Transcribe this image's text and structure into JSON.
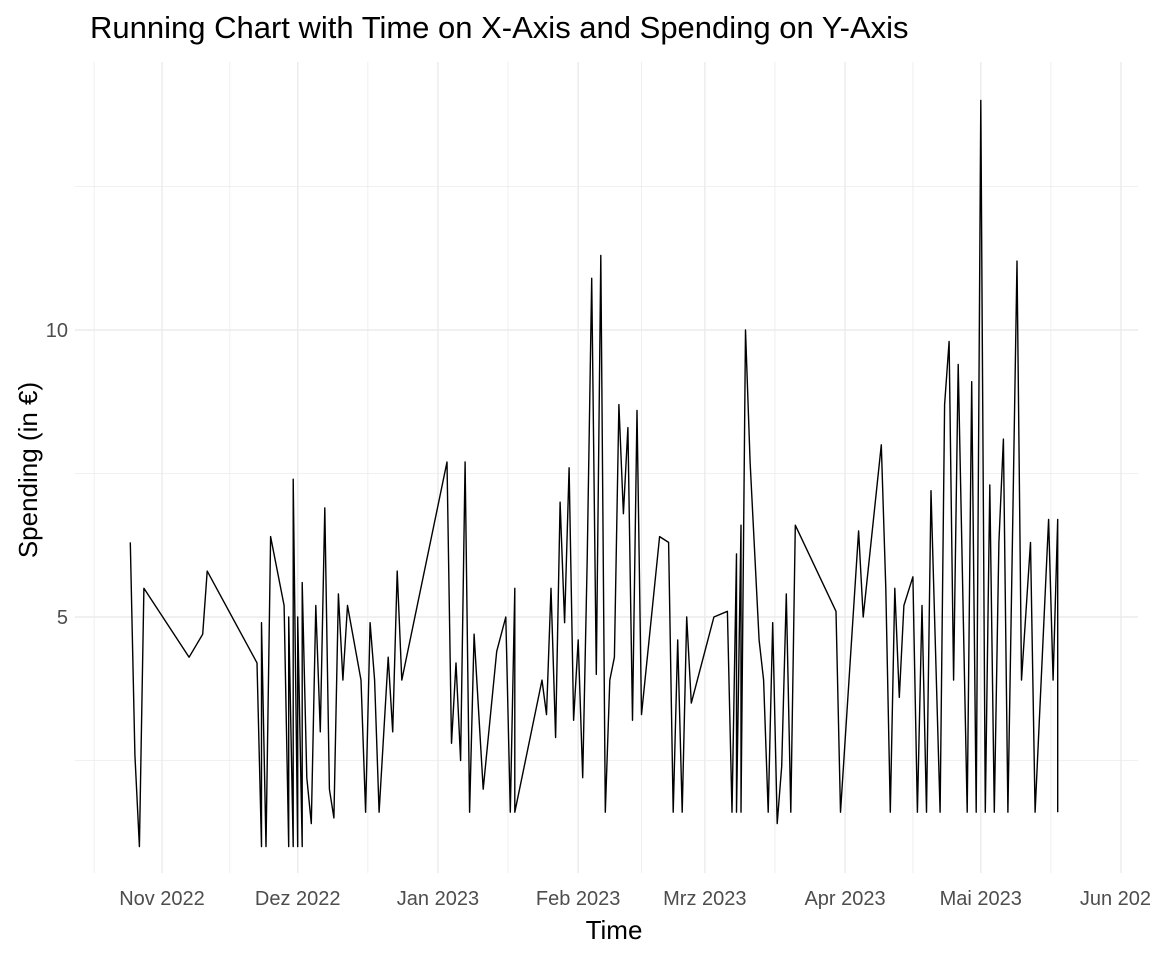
{
  "chart_data": {
    "type": "line",
    "title": "Running Chart with Time on X-Axis and Spending on Y-Axis",
    "xlabel": "Time",
    "ylabel": "Spending (in €)",
    "x_ticks": [
      {
        "date": "2022-11-01",
        "label": "Nov 2022"
      },
      {
        "date": "2022-12-01",
        "label": "Dez 2022"
      },
      {
        "date": "2023-01-01",
        "label": "Jan 2023"
      },
      {
        "date": "2023-02-01",
        "label": "Feb 2023"
      },
      {
        "date": "2023-03-01",
        "label": "Mrz 2023"
      },
      {
        "date": "2023-04-01",
        "label": "Apr 2023"
      },
      {
        "date": "2023-05-01",
        "label": "Mai 2023"
      },
      {
        "date": "2023-06-01",
        "label": "Jun 2023"
      }
    ],
    "y_ticks": [
      5,
      10
    ],
    "xlim": [
      "2022-10-16",
      "2023-06-01"
    ],
    "ylim": [
      0.4,
      14.5
    ],
    "grid": true,
    "color": "#000000",
    "series": [
      {
        "points": [
          [
            "2022-10-25",
            6.3
          ],
          [
            "2022-10-26",
            2.6
          ],
          [
            "2022-10-27",
            1.0
          ],
          [
            "2022-10-28",
            5.5
          ],
          [
            "2022-11-07",
            4.3
          ],
          [
            "2022-11-10",
            4.7
          ],
          [
            "2022-11-11",
            5.8
          ],
          [
            "2022-11-22",
            4.2
          ],
          [
            "2022-11-23",
            1.0
          ],
          [
            "2022-11-23",
            4.9
          ],
          [
            "2022-11-24",
            1.0
          ],
          [
            "2022-11-25",
            6.4
          ],
          [
            "2022-11-28",
            5.2
          ],
          [
            "2022-11-29",
            1.0
          ],
          [
            "2022-11-29",
            5.0
          ],
          [
            "2022-11-30",
            1.0
          ],
          [
            "2022-11-30",
            7.4
          ],
          [
            "2022-12-01",
            1.0
          ],
          [
            "2022-12-01",
            5.0
          ],
          [
            "2022-12-02",
            1.0
          ],
          [
            "2022-12-02",
            5.6
          ],
          [
            "2022-12-03",
            2.2
          ],
          [
            "2022-12-04",
            1.4
          ],
          [
            "2022-12-05",
            5.2
          ],
          [
            "2022-12-06",
            3.0
          ],
          [
            "2022-12-07",
            6.9
          ],
          [
            "2022-12-08",
            2.0
          ],
          [
            "2022-12-09",
            1.5
          ],
          [
            "2022-12-10",
            5.4
          ],
          [
            "2022-12-11",
            3.9
          ],
          [
            "2022-12-12",
            5.2
          ],
          [
            "2022-12-15",
            3.9
          ],
          [
            "2022-12-16",
            1.6
          ],
          [
            "2022-12-17",
            4.9
          ],
          [
            "2022-12-18",
            3.9
          ],
          [
            "2022-12-19",
            1.6
          ],
          [
            "2022-12-21",
            4.3
          ],
          [
            "2022-12-22",
            3.0
          ],
          [
            "2022-12-23",
            5.8
          ],
          [
            "2022-12-24",
            3.9
          ],
          [
            "2023-01-03",
            7.7
          ],
          [
            "2023-01-04",
            2.8
          ],
          [
            "2023-01-05",
            4.2
          ],
          [
            "2023-01-06",
            2.5
          ],
          [
            "2023-01-07",
            7.7
          ],
          [
            "2023-01-08",
            1.6
          ],
          [
            "2023-01-09",
            4.7
          ],
          [
            "2023-01-11",
            2.0
          ],
          [
            "2023-01-14",
            4.4
          ],
          [
            "2023-01-16",
            5.0
          ],
          [
            "2023-01-17",
            1.6
          ],
          [
            "2023-01-18",
            5.5
          ],
          [
            "2023-01-18",
            1.6
          ],
          [
            "2023-01-24",
            3.9
          ],
          [
            "2023-01-25",
            3.3
          ],
          [
            "2023-01-26",
            5.5
          ],
          [
            "2023-01-27",
            2.9
          ],
          [
            "2023-01-28",
            7.0
          ],
          [
            "2023-01-29",
            4.9
          ],
          [
            "2023-01-30",
            7.6
          ],
          [
            "2023-01-31",
            3.2
          ],
          [
            "2023-02-01",
            4.6
          ],
          [
            "2023-02-02",
            2.2
          ],
          [
            "2023-02-03",
            6.0
          ],
          [
            "2023-02-04",
            10.9
          ],
          [
            "2023-02-05",
            4.0
          ],
          [
            "2023-02-06",
            11.3
          ],
          [
            "2023-02-07",
            1.6
          ],
          [
            "2023-02-08",
            3.9
          ],
          [
            "2023-02-09",
            4.3
          ],
          [
            "2023-02-10",
            8.7
          ],
          [
            "2023-02-11",
            6.8
          ],
          [
            "2023-02-12",
            8.3
          ],
          [
            "2023-02-13",
            3.2
          ],
          [
            "2023-02-14",
            8.6
          ],
          [
            "2023-02-15",
            3.3
          ],
          [
            "2023-02-19",
            6.4
          ],
          [
            "2023-02-21",
            6.3
          ],
          [
            "2023-02-22",
            1.6
          ],
          [
            "2023-02-23",
            4.6
          ],
          [
            "2023-02-24",
            1.6
          ],
          [
            "2023-02-25",
            5.0
          ],
          [
            "2023-02-26",
            3.5
          ],
          [
            "2023-03-03",
            5.0
          ],
          [
            "2023-03-06",
            5.1
          ],
          [
            "2023-03-07",
            1.6
          ],
          [
            "2023-03-08",
            6.1
          ],
          [
            "2023-03-08",
            1.6
          ],
          [
            "2023-03-09",
            6.6
          ],
          [
            "2023-03-09",
            1.6
          ],
          [
            "2023-03-10",
            10.0
          ],
          [
            "2023-03-11",
            7.7
          ],
          [
            "2023-03-13",
            4.6
          ],
          [
            "2023-03-14",
            3.9
          ],
          [
            "2023-03-15",
            1.6
          ],
          [
            "2023-03-16",
            4.9
          ],
          [
            "2023-03-17",
            1.4
          ],
          [
            "2023-03-18",
            2.4
          ],
          [
            "2023-03-19",
            5.4
          ],
          [
            "2023-03-20",
            1.6
          ],
          [
            "2023-03-21",
            6.6
          ],
          [
            "2023-03-30",
            5.1
          ],
          [
            "2023-03-31",
            1.6
          ],
          [
            "2023-04-04",
            6.5
          ],
          [
            "2023-04-05",
            5.0
          ],
          [
            "2023-04-09",
            8.0
          ],
          [
            "2023-04-10",
            5.5
          ],
          [
            "2023-04-11",
            1.6
          ],
          [
            "2023-04-12",
            5.5
          ],
          [
            "2023-04-13",
            3.6
          ],
          [
            "2023-04-14",
            5.2
          ],
          [
            "2023-04-16",
            5.7
          ],
          [
            "2023-04-17",
            1.6
          ],
          [
            "2023-04-18",
            5.2
          ],
          [
            "2023-04-19",
            1.6
          ],
          [
            "2023-04-20",
            7.2
          ],
          [
            "2023-04-22",
            1.6
          ],
          [
            "2023-04-23",
            8.7
          ],
          [
            "2023-04-24",
            9.8
          ],
          [
            "2023-04-25",
            3.9
          ],
          [
            "2023-04-26",
            9.4
          ],
          [
            "2023-04-28",
            1.6
          ],
          [
            "2023-04-29",
            9.1
          ],
          [
            "2023-04-30",
            1.6
          ],
          [
            "2023-05-01",
            14.0
          ],
          [
            "2023-05-02",
            1.6
          ],
          [
            "2023-05-03",
            7.3
          ],
          [
            "2023-05-04",
            1.6
          ],
          [
            "2023-05-05",
            6.3
          ],
          [
            "2023-05-06",
            8.1
          ],
          [
            "2023-05-07",
            1.6
          ],
          [
            "2023-05-08",
            6.3
          ],
          [
            "2023-05-09",
            11.2
          ],
          [
            "2023-05-10",
            3.9
          ],
          [
            "2023-05-11",
            5.1
          ],
          [
            "2023-05-12",
            6.3
          ],
          [
            "2023-05-13",
            1.6
          ],
          [
            "2023-05-16",
            6.7
          ],
          [
            "2023-05-17",
            3.9
          ],
          [
            "2023-05-18",
            6.7
          ],
          [
            "2023-05-18",
            1.6
          ]
        ]
      }
    ]
  }
}
